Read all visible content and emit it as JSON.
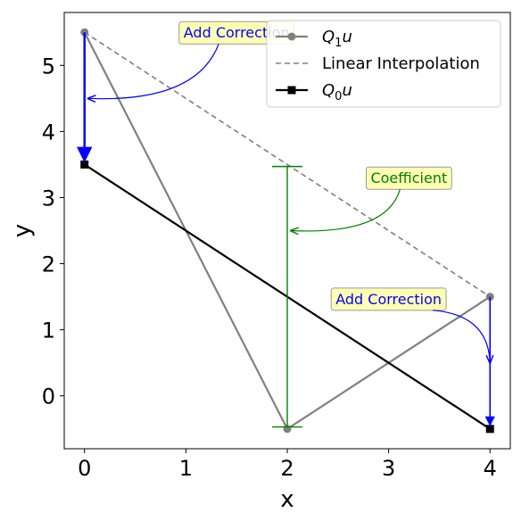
{
  "chart_data": {
    "type": "line",
    "xlabel": "x",
    "ylabel": "y",
    "xlim": [
      -0.2,
      4.2
    ],
    "ylim": [
      -0.8,
      5.8
    ],
    "xticks": [
      0,
      1,
      2,
      3,
      4
    ],
    "yticks": [
      0,
      1,
      2,
      3,
      4,
      5
    ],
    "grid": false,
    "legend_position": "top-right",
    "series": [
      {
        "name": "Q₁u",
        "style": "solid-circle-markers",
        "color": "#808080",
        "x": [
          0,
          2,
          4
        ],
        "y": [
          5.5,
          -0.5,
          1.5
        ]
      },
      {
        "name": "Linear Interpolation",
        "style": "dashed",
        "color": "#808080",
        "x": [
          0,
          4
        ],
        "y": [
          5.5,
          1.5
        ]
      },
      {
        "name": "Q₀u",
        "style": "solid-square-markers",
        "color": "#000000",
        "x": [
          0,
          4
        ],
        "y": [
          3.5,
          -0.5
        ]
      }
    ],
    "correction_arrows": [
      {
        "x": 0,
        "from": 5.5,
        "to": 3.5,
        "color": "#0000ff"
      },
      {
        "x": 4,
        "from": 1.5,
        "to": -0.5,
        "color": "#0000ff"
      }
    ],
    "coefficient_bar": {
      "x": 2,
      "from": 3.47,
      "to": -0.47,
      "color": "#008000"
    },
    "annotations": [
      {
        "text": "Add Correction",
        "x": 1.5,
        "y": 5.5,
        "arrow_to": [
          0,
          4.5
        ],
        "color": "#0000ff"
      },
      {
        "text": "Coefficient",
        "x": 3.2,
        "y": 3.3,
        "arrow_to": [
          2,
          2.5
        ],
        "color": "#008000"
      },
      {
        "text": "Add Correction",
        "x": 3.0,
        "y": 1.47,
        "arrow_to": [
          4,
          0.5
        ],
        "color": "#0000ff"
      }
    ],
    "legend": [
      {
        "label": "Q₁u",
        "sub": "1"
      },
      {
        "label": "Linear Interpolation"
      },
      {
        "label": "Q₀u",
        "sub": "0"
      }
    ]
  }
}
